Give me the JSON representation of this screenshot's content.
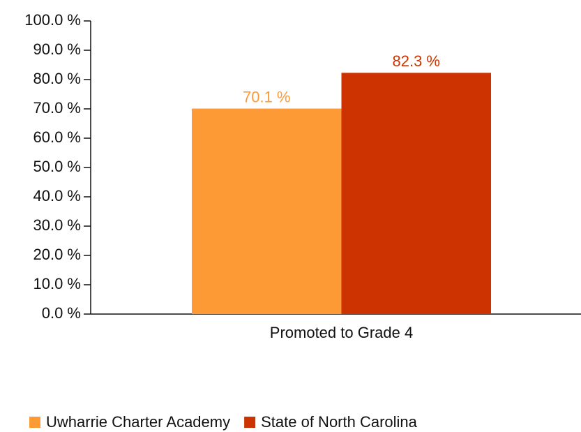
{
  "chart_data": {
    "type": "bar",
    "categories": [
      "Promoted to Grade 4"
    ],
    "series": [
      {
        "name": "Uwharrie Charter Academy",
        "color": "#fd9a36",
        "values": [
          70.1
        ],
        "value_labels": [
          "70.1 %"
        ]
      },
      {
        "name": "State of North Carolina",
        "color": "#cc3300",
        "values": [
          82.3
        ],
        "value_labels": [
          "82.3 %"
        ]
      }
    ],
    "ylim": [
      0,
      100
    ],
    "yticks": [
      {
        "value": 0,
        "label": "0.0 %"
      },
      {
        "value": 10,
        "label": "10.0 %"
      },
      {
        "value": 20,
        "label": "20.0 %"
      },
      {
        "value": 30,
        "label": "30.0 %"
      },
      {
        "value": 40,
        "label": "40.0 %"
      },
      {
        "value": 50,
        "label": "50.0 %"
      },
      {
        "value": 60,
        "label": "60.0 %"
      },
      {
        "value": 70,
        "label": "70.0 %"
      },
      {
        "value": 80,
        "label": "80.0 %"
      },
      {
        "value": 90,
        "label": "90.0 %"
      },
      {
        "value": 100,
        "label": "100.0 %"
      }
    ],
    "legend": "bottom"
  }
}
